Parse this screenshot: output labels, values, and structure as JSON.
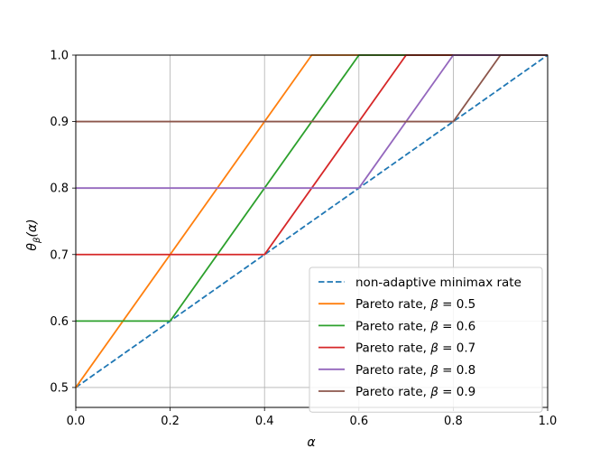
{
  "chart_data": {
    "type": "line",
    "xlabel": "α",
    "ylabel": "θ_β(α)",
    "xlim": [
      0.0,
      1.0
    ],
    "ylim": [
      0.47,
      1.0
    ],
    "xticks": [
      "0.0",
      "0.2",
      "0.4",
      "0.6",
      "0.8",
      "1.0"
    ],
    "yticks": [
      "0.5",
      "0.6",
      "0.7",
      "0.8",
      "0.9",
      "1.0"
    ],
    "grid": true,
    "legend_position": "lower-right",
    "series": [
      {
        "name": "non-adaptive minimax rate",
        "legend_plain": "non-adaptive minimax rate",
        "color": "#1f77b4",
        "dashed": true,
        "points": [
          [
            0.0,
            0.5
          ],
          [
            1.0,
            1.0
          ]
        ]
      },
      {
        "name": "Pareto rate, β = 0.5",
        "legend_plain": "Pareto rate, ",
        "legend_var": "β",
        "legend_value": " = 0.5",
        "color": "#ff7f0e",
        "dashed": false,
        "points": [
          [
            0.0,
            0.5
          ],
          [
            0.5,
            1.0
          ],
          [
            1.0,
            1.0
          ]
        ]
      },
      {
        "name": "Pareto rate, β = 0.6",
        "legend_plain": "Pareto rate, ",
        "legend_var": "β",
        "legend_value": " = 0.6",
        "color": "#2ca02c",
        "dashed": false,
        "points": [
          [
            0.0,
            0.6
          ],
          [
            0.2,
            0.6
          ],
          [
            0.6,
            1.0
          ],
          [
            1.0,
            1.0
          ]
        ]
      },
      {
        "name": "Pareto rate, β = 0.7",
        "legend_plain": "Pareto rate, ",
        "legend_var": "β",
        "legend_value": " = 0.7",
        "color": "#d62728",
        "dashed": false,
        "points": [
          [
            0.0,
            0.7
          ],
          [
            0.4,
            0.7
          ],
          [
            0.7,
            1.0
          ],
          [
            1.0,
            1.0
          ]
        ]
      },
      {
        "name": "Pareto rate, β = 0.8",
        "legend_plain": "Pareto rate, ",
        "legend_var": "β",
        "legend_value": " = 0.8",
        "color": "#9467bd",
        "dashed": false,
        "points": [
          [
            0.0,
            0.8
          ],
          [
            0.6,
            0.8
          ],
          [
            0.8,
            1.0
          ],
          [
            1.0,
            1.0
          ]
        ]
      },
      {
        "name": "Pareto rate, β = 0.9",
        "legend_plain": "Pareto rate, ",
        "legend_var": "β",
        "legend_value": " = 0.9",
        "color": "#8c564b",
        "dashed": false,
        "points": [
          [
            0.0,
            0.9
          ],
          [
            0.8,
            0.9
          ],
          [
            0.9,
            1.0
          ],
          [
            1.0,
            1.0
          ]
        ]
      }
    ]
  }
}
